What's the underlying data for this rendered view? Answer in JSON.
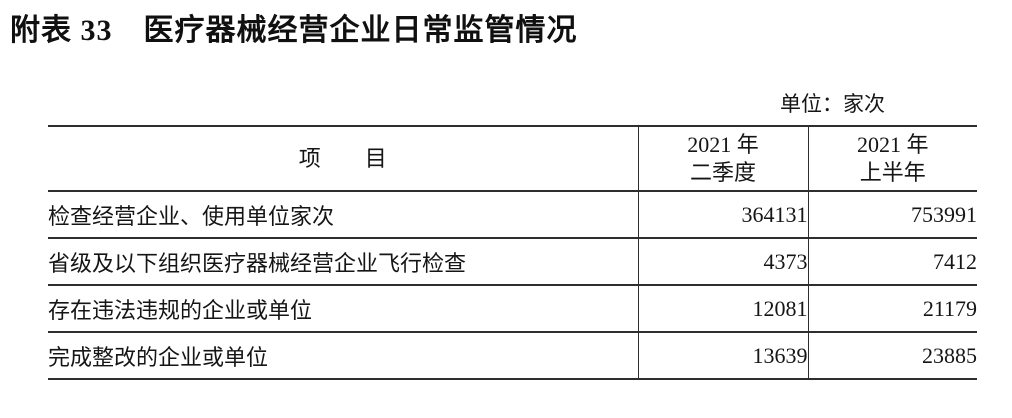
{
  "title": "附表 33　医疗器械经营企业日常监管情况",
  "unit_label": "单位：家次",
  "table": {
    "header": {
      "item_col": "项　　目",
      "col_q2": {
        "line1": "2021 年",
        "line2": "二季度"
      },
      "col_h1": {
        "line1": "2021 年",
        "line2": "上半年"
      }
    },
    "rows": [
      {
        "item": "检查经营企业、使用单位家次",
        "q2_2021": "364131",
        "h1_2021": "753991"
      },
      {
        "item": "省级及以下组织医疗器械经营企业飞行检查",
        "q2_2021": "4373",
        "h1_2021": "7412"
      },
      {
        "item": "存在违法违规的企业或单位",
        "q2_2021": "12081",
        "h1_2021": "21179"
      },
      {
        "item": "完成整改的企业或单位",
        "q2_2021": "13639",
        "h1_2021": "23885"
      }
    ]
  },
  "colors": {
    "background": "#ffffff",
    "text": "#151515",
    "rule_line": "#2e2e2e"
  }
}
